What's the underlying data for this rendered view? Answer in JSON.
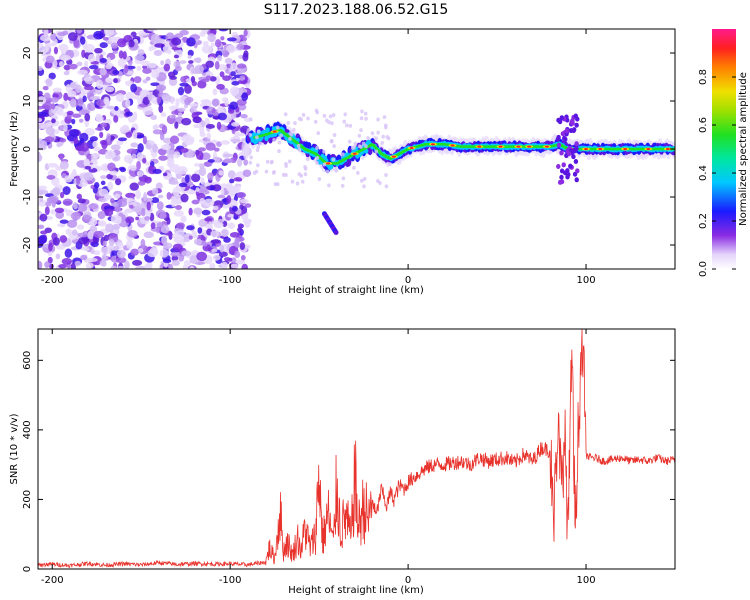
{
  "figure": {
    "title": "S117.2023.188.06.52.G15"
  },
  "chart_data": [
    {
      "type": "heatmap",
      "title": "S117.2023.188.06.52.G15",
      "xlabel": "Height of straight line (km)",
      "ylabel": "Frequency (Hz)",
      "xlim": [
        -208,
        150
      ],
      "ylim": [
        -25,
        25
      ],
      "xticks": [
        -200,
        -100,
        0,
        100
      ],
      "yticks": [
        -20,
        -10,
        0,
        10,
        20
      ],
      "grid": false,
      "noise_region_x": [
        -208,
        -90
      ],
      "signal_track": {
        "x": [
          -90,
          -80,
          -72,
          -65,
          -58,
          -52,
          -46,
          -40,
          -35,
          -30,
          -25,
          -20,
          -15,
          -10,
          -5,
          0,
          10,
          20,
          30,
          40,
          50,
          60,
          70,
          80,
          85,
          90,
          95,
          100,
          110,
          120,
          130,
          140,
          150
        ],
        "freq": [
          2,
          3,
          4,
          2,
          0,
          -1,
          -3,
          -3,
          -2,
          -1,
          0,
          1,
          -1,
          -2,
          -1,
          0,
          1,
          1,
          0.5,
          0.5,
          0.5,
          0.5,
          0.5,
          0.5,
          1,
          0,
          0,
          0,
          0,
          0,
          0,
          0,
          0
        ]
      },
      "colorbar": {
        "label": "Normalized spectral amplitude",
        "range": [
          0,
          1
        ],
        "ticks": [
          0.0,
          0.2,
          0.4,
          0.6,
          0.8
        ],
        "tick_labels": [
          "0.0",
          "0.2",
          "0.4",
          "0.6",
          "0.8"
        ]
      }
    },
    {
      "type": "line",
      "xlabel": "Height of straight line (km)",
      "ylabel": "SNR (10 * v/v)",
      "xlim": [
        -208,
        150
      ],
      "ylim": [
        0,
        690
      ],
      "xticks": [
        -200,
        -100,
        0,
        100
      ],
      "yticks": [
        0,
        200,
        400,
        600
      ],
      "grid": false,
      "series": [
        {
          "name": "SNR",
          "color": "#e8322c",
          "x": [
            -208,
            -200,
            -190,
            -180,
            -170,
            -160,
            -150,
            -140,
            -130,
            -120,
            -110,
            -100,
            -90,
            -80,
            -78,
            -75,
            -72,
            -70,
            -68,
            -65,
            -62,
            -60,
            -58,
            -55,
            -52,
            -50,
            -48,
            -45,
            -42,
            -40,
            -38,
            -35,
            -32,
            -30,
            -28,
            -25,
            -22,
            -20,
            -18,
            -15,
            -12,
            -10,
            -8,
            -5,
            -2,
            0,
            5,
            10,
            15,
            20,
            25,
            30,
            35,
            40,
            45,
            50,
            55,
            60,
            65,
            70,
            75,
            80,
            82,
            84,
            86,
            88,
            90,
            92,
            94,
            96,
            98,
            100,
            102,
            105,
            110,
            115,
            120,
            125,
            130,
            135,
            140,
            145,
            150
          ],
          "y": [
            12,
            14,
            10,
            16,
            11,
            15,
            12,
            18,
            13,
            16,
            14,
            15,
            12,
            20,
            60,
            30,
            170,
            50,
            80,
            40,
            90,
            50,
            120,
            60,
            100,
            280,
            80,
            160,
            70,
            250,
            110,
            150,
            90,
            270,
            120,
            180,
            140,
            200,
            150,
            230,
            180,
            220,
            200,
            240,
            230,
            250,
            270,
            290,
            300,
            300,
            305,
            310,
            300,
            320,
            310,
            315,
            320,
            305,
            330,
            310,
            350,
            340,
            150,
            420,
            230,
            380,
            100,
            620,
            90,
            460,
            690,
            330,
            320,
            320,
            310,
            315,
            320,
            310,
            315,
            310,
            320,
            310,
            315
          ]
        }
      ]
    }
  ]
}
